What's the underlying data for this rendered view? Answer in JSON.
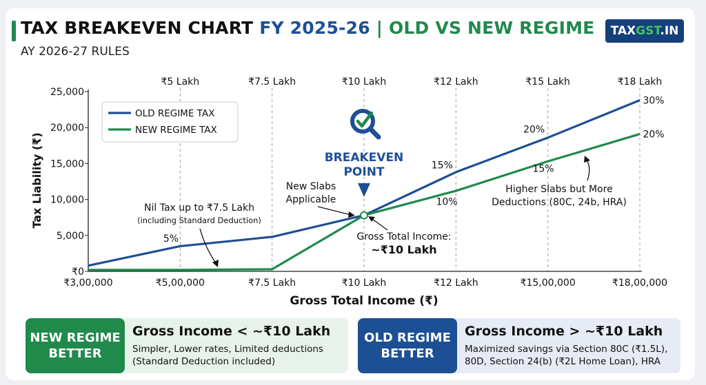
{
  "header": {
    "title_part1": "TAX BREAKEVEN CHART ",
    "title_part2": "FY 2025-26",
    "title_part3": " | OLD VS NEW REGIME",
    "subtitle": "AY 2026-27 RULES",
    "logo_part1": "TAX",
    "logo_part2": "GST",
    "logo_part3": ".IN"
  },
  "chart_data": {
    "type": "line",
    "xlabel": "Gross Total Income (₹)",
    "ylabel": "Tax Liability (₹)",
    "ylim": [
      0,
      25000
    ],
    "yticks": [
      0,
      5000,
      10000,
      15000,
      20000,
      25000
    ],
    "ytick_labels": [
      "₹0",
      "5,000",
      "10,000",
      "15,000",
      "20,000",
      "25,000"
    ],
    "x": [
      0,
      1,
      2,
      3,
      4,
      5,
      6
    ],
    "xtick_labels": [
      "₹3,00,000",
      "₹5,00,000",
      "₹7.5 Lakh",
      "₹10 Lakh",
      "₹12 Lakh",
      "₹15,00,000",
      "₹18,00,000"
    ],
    "top_labels": [
      "₹5 Lakh",
      "₹7.5 Lakh",
      "₹10 Lakh",
      "₹12 Lakh",
      "₹15 Lakh",
      "₹18 Lakh"
    ],
    "grid": "vertical-dashed",
    "legend_position": "top-left",
    "series": [
      {
        "name": "OLD REGIME TAX",
        "color": "#1d4f95",
        "values": [
          800,
          3500,
          4800,
          7800,
          13800,
          18600,
          23800
        ]
      },
      {
        "name": "NEW REGIME TAX",
        "color": "#1f8a4c",
        "values": [
          200,
          200,
          300,
          7800,
          11200,
          15300,
          19100
        ]
      }
    ],
    "rate_labels": [
      {
        "text": "5%",
        "x": 0.9,
        "y": 4600
      },
      {
        "text": "15%",
        "x": 3.85,
        "y": 14800
      },
      {
        "text": "20%",
        "x": 4.85,
        "y": 19800
      },
      {
        "text": "30%",
        "x": 6.15,
        "y": 23800
      },
      {
        "text": "10%",
        "x": 3.9,
        "y": 9700
      },
      {
        "text": "15%",
        "x": 4.95,
        "y": 14300
      },
      {
        "text": "20%",
        "x": 6.15,
        "y": 19100
      }
    ],
    "annotations": {
      "breakeven_line1": "BREAKEVEN",
      "breakeven_line2": "POINT",
      "breakeven_x": 3,
      "breakeven_y": 7800,
      "new_slabs_line1": "New Slabs",
      "new_slabs_line2": "Applicable",
      "nil_tax_line1": "Nil Tax up to ₹7.5 Lakh",
      "nil_tax_line2": "(including Standard Deduction)",
      "gross_line1": "Gross Total Income:",
      "gross_line2": "~₹10 Lakh",
      "higher_line1": "Higher Slabs but More",
      "higher_line2": "Deductions (80C, 24b, HRA)"
    },
    "colors": {
      "old": "#1d4f95",
      "new": "#1f8a4c",
      "grid": "#9aa0a6"
    }
  },
  "panels": {
    "new": {
      "tag_line1": "NEW REGIME",
      "tag_line2": "BETTER",
      "heading": "Gross Income < ~₹10 Lakh",
      "line1": "Simpler, Lower rates, Limited deductions",
      "line2": "(Standard Deduction included)"
    },
    "old": {
      "tag_line1": "OLD REGIME",
      "tag_line2": "BETTER",
      "heading": "Gross Income > ~₹10 Lakh",
      "line1": "Maximized savings via Section 80C (₹1.5L),",
      "line2": "80D, Section 24(b) (₹2L Home Loan), HRA"
    }
  }
}
